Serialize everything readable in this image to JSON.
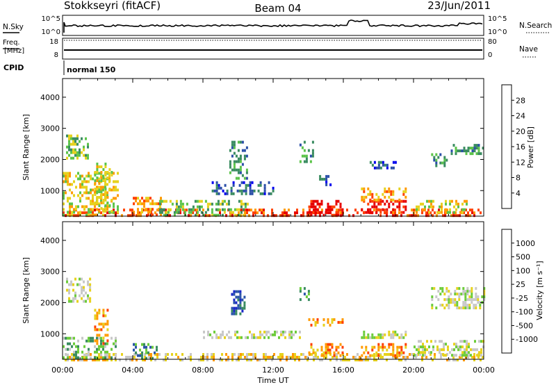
{
  "header": {
    "station": "Stokkseyri (fitACF)",
    "beam": "Beam 04",
    "date": "23/Jun/2011"
  },
  "noise_panel": {
    "left_label": "N.Sky",
    "right_label": "N.Search",
    "left_ticks": [
      "10^5",
      "10^0"
    ],
    "right_ticks": [
      "10^5",
      "10^0"
    ]
  },
  "freq_panel": {
    "left_label_1": "Freq.",
    "left_label_2": "[MHz]",
    "right_label": "Nave",
    "left_ticks": [
      "18",
      "8"
    ],
    "right_ticks": [
      "80",
      "0"
    ]
  },
  "cpid": {
    "label": "CPID",
    "value": "normal 150"
  },
  "x_axis": {
    "ticks": [
      "00:00",
      "04:00",
      "08:00",
      "12:00",
      "16:00",
      "20:00",
      "00:00"
    ],
    "label": "Time UT"
  },
  "chart_data": [
    {
      "type": "heatmap",
      "title": "Power",
      "ylabel": "Slant Range [km]",
      "xlabel": "Time UT",
      "x_range_hours": [
        0,
        24
      ],
      "ylim": [
        180,
        4600
      ],
      "y_ticks": [
        "1000",
        "2000",
        "3000",
        "4000"
      ],
      "colorbar": {
        "label": "Power [dB]",
        "ticks": [
          "4",
          "8",
          "12",
          "16",
          "20",
          "24",
          "28"
        ],
        "colors": [
          "#0000ee",
          "#2b4fa8",
          "#3a8c60",
          "#5cc44a",
          "#e6d21e",
          "#ff9a00",
          "#ff4000",
          "#e60000"
        ]
      },
      "echo_regions": [
        {
          "t0": 0.0,
          "t1": 24.0,
          "r0": 200,
          "r1": 420,
          "level": 6
        },
        {
          "t0": 0.0,
          "t1": 3.2,
          "r0": 200,
          "r1": 1600,
          "level": 4
        },
        {
          "t0": 0.2,
          "t1": 1.4,
          "r0": 2000,
          "r1": 2800,
          "level": 3
        },
        {
          "t0": 1.8,
          "t1": 2.8,
          "r0": 300,
          "r1": 1900,
          "level": 4
        },
        {
          "t0": 4.0,
          "t1": 5.6,
          "r0": 250,
          "r1": 800,
          "level": 5
        },
        {
          "t0": 5.5,
          "t1": 10.5,
          "r0": 250,
          "r1": 700,
          "level": 3
        },
        {
          "t0": 8.5,
          "t1": 12.0,
          "r0": 900,
          "r1": 1300,
          "level": 1
        },
        {
          "t0": 9.5,
          "t1": 10.5,
          "r0": 1400,
          "r1": 2600,
          "level": 2
        },
        {
          "t0": 13.5,
          "t1": 14.3,
          "r0": 1900,
          "r1": 2600,
          "level": 2
        },
        {
          "t0": 14.0,
          "t1": 16.0,
          "r0": 250,
          "r1": 700,
          "level": 7
        },
        {
          "t0": 14.5,
          "t1": 15.3,
          "r0": 1200,
          "r1": 1500,
          "level": 1
        },
        {
          "t0": 17.0,
          "t1": 19.5,
          "r0": 300,
          "r1": 700,
          "level": 7
        },
        {
          "t0": 17.0,
          "t1": 19.5,
          "r0": 700,
          "r1": 1100,
          "level": 5
        },
        {
          "t0": 17.5,
          "t1": 19.0,
          "r0": 1700,
          "r1": 1950,
          "level": 1
        },
        {
          "t0": 20.0,
          "t1": 23.0,
          "r0": 300,
          "r1": 700,
          "level": 4
        },
        {
          "t0": 21.0,
          "t1": 22.0,
          "r0": 1800,
          "r1": 2200,
          "level": 2
        },
        {
          "t0": 22.0,
          "t1": 24.0,
          "r0": 2200,
          "r1": 2500,
          "level": 2
        }
      ]
    },
    {
      "type": "heatmap",
      "title": "Velocity",
      "ylabel": "Slant Range [km]",
      "xlabel": "Time UT",
      "x_range_hours": [
        0,
        24
      ],
      "ylim": [
        180,
        4600
      ],
      "y_ticks": [
        "1000",
        "2000",
        "3000",
        "4000"
      ],
      "colorbar": {
        "label": "Velocity [m s⁻¹]",
        "ticks": [
          "1000",
          "500",
          "100",
          "25",
          "-25",
          "-100",
          "-500",
          "-1000"
        ],
        "colors": [
          "#1a28c8",
          "#2b55a8",
          "#3a8c60",
          "#6ccc3a",
          "#c8c8c8",
          "#e6d21e",
          "#ff9a00",
          "#ff4000",
          "#e60000"
        ]
      },
      "echo_regions": [
        {
          "t0": 0.0,
          "t1": 24.0,
          "r0": 200,
          "r1": 380,
          "level": 5
        },
        {
          "t0": 0.0,
          "t1": 3.0,
          "r0": 200,
          "r1": 900,
          "level": 3
        },
        {
          "t0": 0.2,
          "t1": 1.6,
          "r0": 2000,
          "r1": 2800,
          "level": 4
        },
        {
          "t0": 1.8,
          "t1": 2.6,
          "r0": 700,
          "r1": 1800,
          "level": 6
        },
        {
          "t0": 4.0,
          "t1": 5.4,
          "r0": 250,
          "r1": 700,
          "level": 2
        },
        {
          "t0": 9.6,
          "t1": 10.4,
          "r0": 1600,
          "r1": 2400,
          "level": 1
        },
        {
          "t0": 8.0,
          "t1": 13.5,
          "r0": 900,
          "r1": 1100,
          "level": 4
        },
        {
          "t0": 13.5,
          "t1": 14.2,
          "r0": 2100,
          "r1": 2500,
          "level": 2
        },
        {
          "t0": 14.0,
          "t1": 16.0,
          "r0": 300,
          "r1": 700,
          "level": 6
        },
        {
          "t0": 14.0,
          "t1": 16.0,
          "r0": 1300,
          "r1": 1500,
          "level": 6
        },
        {
          "t0": 17.0,
          "t1": 19.5,
          "r0": 300,
          "r1": 700,
          "level": 6
        },
        {
          "t0": 17.0,
          "t1": 19.5,
          "r0": 900,
          "r1": 1100,
          "level": 4
        },
        {
          "t0": 20.0,
          "t1": 24.0,
          "r0": 300,
          "r1": 800,
          "level": 4
        },
        {
          "t0": 21.0,
          "t1": 24.0,
          "r0": 1800,
          "r1": 2500,
          "level": 4
        }
      ]
    }
  ]
}
